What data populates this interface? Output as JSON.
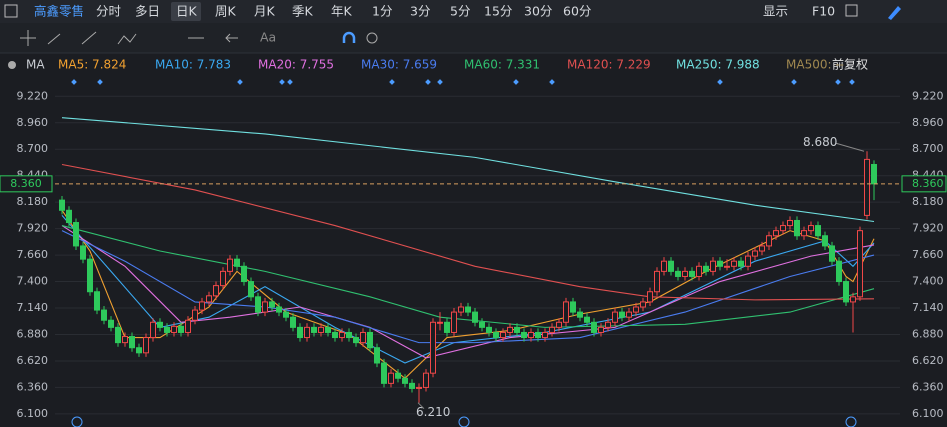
{
  "toolbar": {
    "stock": "高鑫零售",
    "periods": [
      "分时",
      "多日",
      "日K",
      "周K",
      "月K",
      "季K",
      "年K",
      "1分",
      "3分",
      "5分",
      "15分",
      "30分",
      "60分"
    ],
    "display": "显示",
    "f10": "F10"
  },
  "drawbar": {
    "text_tool": "Aa"
  },
  "chart_data": {
    "type": "candlestick",
    "indicator": "MA",
    "adjust": "前复权",
    "xlim": [
      0,
      118
    ],
    "ylim": [
      6.04,
      9.38
    ],
    "yticks": [
      {
        "value": 9.22,
        "label": "9.220"
      },
      {
        "value": 8.96,
        "label": "8.960"
      },
      {
        "value": 8.7,
        "label": "8.700"
      },
      {
        "value": 8.44,
        "label": "8.440"
      },
      {
        "value": 8.18,
        "label": "8.180"
      },
      {
        "value": 7.92,
        "label": "7.920"
      },
      {
        "value": 7.66,
        "label": "7.660"
      },
      {
        "value": 7.4,
        "label": "7.400"
      },
      {
        "value": 7.14,
        "label": "7.140"
      },
      {
        "value": 6.88,
        "label": "6.880"
      },
      {
        "value": 6.62,
        "label": "6.620"
      },
      {
        "value": 6.36,
        "label": "6.360"
      },
      {
        "value": 6.1,
        "label": "6.100"
      }
    ],
    "grid": true,
    "up_color": "#f04848",
    "down_color": "#2ec95c",
    "candles": [
      [
        8.2,
        8.24,
        8.06,
        8.1
      ],
      [
        8.1,
        8.14,
        7.94,
        7.98
      ],
      [
        7.98,
        8.02,
        7.71,
        7.75
      ],
      [
        7.75,
        7.79,
        7.58,
        7.62
      ],
      [
        7.62,
        7.66,
        7.26,
        7.3
      ],
      [
        7.3,
        7.34,
        7.08,
        7.12
      ],
      [
        7.12,
        7.16,
        6.98,
        7.02
      ],
      [
        7.02,
        7.06,
        6.91,
        6.95
      ],
      [
        6.95,
        6.99,
        6.76,
        6.8
      ],
      [
        6.8,
        6.9,
        6.76,
        6.86
      ],
      [
        6.86,
        6.9,
        6.71,
        6.75
      ],
      [
        6.75,
        6.79,
        6.66,
        6.7
      ],
      [
        6.7,
        6.89,
        6.66,
        6.85
      ],
      [
        6.85,
        7.04,
        6.81,
        7.0
      ],
      [
        7.0,
        7.04,
        6.91,
        6.95
      ],
      [
        6.95,
        6.99,
        6.86,
        6.9
      ],
      [
        6.9,
        7.0,
        6.86,
        6.96
      ],
      [
        6.96,
        7.0,
        6.86,
        6.9
      ],
      [
        6.9,
        7.06,
        6.86,
        7.02
      ],
      [
        7.02,
        7.16,
        6.98,
        7.12
      ],
      [
        7.12,
        7.24,
        7.08,
        7.2
      ],
      [
        7.2,
        7.3,
        7.16,
        7.26
      ],
      [
        7.26,
        7.4,
        7.22,
        7.36
      ],
      [
        7.36,
        7.54,
        7.32,
        7.5
      ],
      [
        7.5,
        7.66,
        7.46,
        7.62
      ],
      [
        7.62,
        7.66,
        7.51,
        7.55
      ],
      [
        7.55,
        7.59,
        7.36,
        7.4
      ],
      [
        7.4,
        7.44,
        7.21,
        7.25
      ],
      [
        7.25,
        7.29,
        7.06,
        7.1
      ],
      [
        7.1,
        7.24,
        7.06,
        7.2
      ],
      [
        7.2,
        7.24,
        7.11,
        7.15
      ],
      [
        7.15,
        7.19,
        7.06,
        7.1
      ],
      [
        7.1,
        7.14,
        7.01,
        7.05
      ],
      [
        7.05,
        7.09,
        6.91,
        6.95
      ],
      [
        6.95,
        6.99,
        6.81,
        6.85
      ],
      [
        6.85,
        6.99,
        6.81,
        6.95
      ],
      [
        6.95,
        6.99,
        6.86,
        6.9
      ],
      [
        6.9,
        6.99,
        6.86,
        6.95
      ],
      [
        6.95,
        6.99,
        6.86,
        6.9
      ],
      [
        6.9,
        6.94,
        6.81,
        6.85
      ],
      [
        6.85,
        6.94,
        6.81,
        6.9
      ],
      [
        6.9,
        6.94,
        6.81,
        6.85
      ],
      [
        6.85,
        6.89,
        6.76,
        6.8
      ],
      [
        6.8,
        6.94,
        6.76,
        6.9
      ],
      [
        6.9,
        6.94,
        6.71,
        6.75
      ],
      [
        6.75,
        6.79,
        6.56,
        6.6
      ],
      [
        6.6,
        6.64,
        6.36,
        6.4
      ],
      [
        6.4,
        6.54,
        6.36,
        6.5
      ],
      [
        6.5,
        6.54,
        6.41,
        6.45
      ],
      [
        6.45,
        6.49,
        6.36,
        6.4
      ],
      [
        6.4,
        6.44,
        6.31,
        6.35
      ],
      [
        6.35,
        6.4,
        6.21,
        6.36
      ],
      [
        6.36,
        6.54,
        6.32,
        6.5
      ],
      [
        6.5,
        7.04,
        6.46,
        7.0
      ],
      [
        7.0,
        7.1,
        6.92,
        7.0
      ],
      [
        7.0,
        7.04,
        6.86,
        6.9
      ],
      [
        6.9,
        7.14,
        6.86,
        7.1
      ],
      [
        7.1,
        7.19,
        7.06,
        7.15
      ],
      [
        7.15,
        7.19,
        7.06,
        7.1
      ],
      [
        7.1,
        7.14,
        6.96,
        7.0
      ],
      [
        7.0,
        7.04,
        6.91,
        6.95
      ],
      [
        6.95,
        6.99,
        6.86,
        6.9
      ],
      [
        6.9,
        6.94,
        6.81,
        6.85
      ],
      [
        6.85,
        6.94,
        6.81,
        6.9
      ],
      [
        6.9,
        6.99,
        6.86,
        6.95
      ],
      [
        6.95,
        6.99,
        6.86,
        6.9
      ],
      [
        6.9,
        6.94,
        6.81,
        6.85
      ],
      [
        6.85,
        6.94,
        6.81,
        6.9
      ],
      [
        6.9,
        6.94,
        6.81,
        6.85
      ],
      [
        6.85,
        6.94,
        6.81,
        6.9
      ],
      [
        6.9,
        6.99,
        6.86,
        6.95
      ],
      [
        6.95,
        7.04,
        6.91,
        7.0
      ],
      [
        7.0,
        7.24,
        6.96,
        7.2
      ],
      [
        7.2,
        7.24,
        7.06,
        7.1
      ],
      [
        7.1,
        7.14,
        7.01,
        7.05
      ],
      [
        7.05,
        7.09,
        6.96,
        7.0
      ],
      [
        7.0,
        7.04,
        6.86,
        6.9
      ],
      [
        6.9,
        6.99,
        6.86,
        6.95
      ],
      [
        6.95,
        7.04,
        6.91,
        7.0
      ],
      [
        7.0,
        7.14,
        6.96,
        7.1
      ],
      [
        7.1,
        7.14,
        7.01,
        7.05
      ],
      [
        7.05,
        7.14,
        7.01,
        7.1
      ],
      [
        7.1,
        7.19,
        7.06,
        7.15
      ],
      [
        7.15,
        7.24,
        7.11,
        7.2
      ],
      [
        7.2,
        7.34,
        7.16,
        7.3
      ],
      [
        7.3,
        7.54,
        7.26,
        7.5
      ],
      [
        7.5,
        7.64,
        7.46,
        7.6
      ],
      [
        7.6,
        7.64,
        7.46,
        7.5
      ],
      [
        7.5,
        7.54,
        7.41,
        7.45
      ],
      [
        7.45,
        7.54,
        7.41,
        7.5
      ],
      [
        7.5,
        7.54,
        7.41,
        7.45
      ],
      [
        7.45,
        7.59,
        7.41,
        7.55
      ],
      [
        7.55,
        7.59,
        7.46,
        7.5
      ],
      [
        7.5,
        7.64,
        7.46,
        7.6
      ],
      [
        7.6,
        7.64,
        7.51,
        7.55
      ],
      [
        7.55,
        7.62,
        7.51,
        7.55
      ],
      [
        7.55,
        7.64,
        7.51,
        7.6
      ],
      [
        7.6,
        7.64,
        7.51,
        7.55
      ],
      [
        7.55,
        7.69,
        7.51,
        7.65
      ],
      [
        7.65,
        7.74,
        7.61,
        7.7
      ],
      [
        7.7,
        7.79,
        7.66,
        7.75
      ],
      [
        7.75,
        7.89,
        7.71,
        7.85
      ],
      [
        7.85,
        7.94,
        7.81,
        7.9
      ],
      [
        7.9,
        7.99,
        7.86,
        7.95
      ],
      [
        7.95,
        8.04,
        7.91,
        8.0
      ],
      [
        8.0,
        8.04,
        7.81,
        7.85
      ],
      [
        7.85,
        7.94,
        7.81,
        7.9
      ],
      [
        7.9,
        7.99,
        7.86,
        7.95
      ],
      [
        7.95,
        7.99,
        7.81,
        7.85
      ],
      [
        7.85,
        7.89,
        7.71,
        7.75
      ],
      [
        7.75,
        7.79,
        7.56,
        7.6
      ],
      [
        7.6,
        7.64,
        7.36,
        7.4
      ],
      [
        7.4,
        7.44,
        7.16,
        7.2
      ],
      [
        7.2,
        7.29,
        6.9,
        7.25
      ],
      [
        7.25,
        7.94,
        7.21,
        7.9
      ],
      [
        8.05,
        8.68,
        8.01,
        8.6
      ],
      [
        8.55,
        8.59,
        8.2,
        8.36
      ]
    ],
    "series": [
      {
        "name": "MA5",
        "legend": "MA5: 7.824",
        "color": "#f0a030",
        "x": [
          1,
          5,
          10,
          15,
          22,
          26,
          33,
          42,
          50,
          56,
          65,
          75,
          85,
          93,
          105,
          110,
          113,
          114,
          117
        ],
        "values": [
          8.1,
          7.7,
          6.85,
          6.85,
          7.15,
          7.5,
          7.1,
          6.88,
          6.45,
          6.85,
          6.92,
          7.08,
          7.2,
          7.5,
          7.9,
          7.8,
          7.45,
          7.4,
          7.82
        ]
      },
      {
        "name": "MA10",
        "legend": "MA10: 7.783",
        "color": "#3aa8f0",
        "x": [
          1,
          8,
          15,
          22,
          30,
          40,
          50,
          57,
          70,
          85,
          100,
          110,
          114,
          117
        ],
        "values": [
          8.05,
          7.5,
          6.95,
          7.05,
          7.35,
          6.95,
          6.6,
          6.8,
          6.9,
          7.1,
          7.6,
          7.8,
          7.55,
          7.78
        ]
      },
      {
        "name": "MA20",
        "legend": "MA20: 7.755",
        "color": "#e070e0",
        "x": [
          1,
          10,
          18,
          25,
          35,
          45,
          53,
          65,
          80,
          95,
          108,
          117
        ],
        "values": [
          7.95,
          7.55,
          7.0,
          7.05,
          7.15,
          6.95,
          6.65,
          6.85,
          6.95,
          7.4,
          7.65,
          7.76
        ]
      },
      {
        "name": "MA30",
        "legend": "MA30: 7.659",
        "color": "#4a7cf0",
        "x": [
          1,
          10,
          20,
          30,
          40,
          52,
          60,
          75,
          90,
          105,
          117
        ],
        "values": [
          7.9,
          7.6,
          7.2,
          7.15,
          7.05,
          6.8,
          6.8,
          6.85,
          7.1,
          7.45,
          7.66
        ]
      },
      {
        "name": "MA60",
        "legend": "MA60: 7.331",
        "color": "#30c070",
        "x": [
          1,
          15,
          30,
          45,
          55,
          70,
          90,
          105,
          117
        ],
        "values": [
          7.95,
          7.7,
          7.5,
          7.25,
          7.05,
          6.95,
          6.98,
          7.1,
          7.33
        ]
      },
      {
        "name": "MA120",
        "legend": "MA120: 7.229",
        "color": "#e05050",
        "x": [
          1,
          20,
          40,
          60,
          75,
          85,
          100,
          117
        ],
        "values": [
          8.55,
          8.3,
          7.95,
          7.55,
          7.35,
          7.25,
          7.22,
          7.23
        ]
      },
      {
        "name": "MA250",
        "legend": "MA250: 7.988",
        "color": "#70e0e0",
        "x": [
          1,
          30,
          60,
          80,
          100,
          117
        ],
        "values": [
          9.01,
          8.85,
          8.62,
          8.38,
          8.15,
          7.99
        ]
      },
      {
        "name": "MA500",
        "legend": "MA500: --",
        "color": "#a08850",
        "x": [],
        "values": []
      }
    ],
    "high": {
      "value": 8.68,
      "label": "8.680"
    },
    "low": {
      "value": 6.21,
      "label": "6.210"
    },
    "last_price": {
      "value": 8.36,
      "label": "8.360"
    }
  }
}
